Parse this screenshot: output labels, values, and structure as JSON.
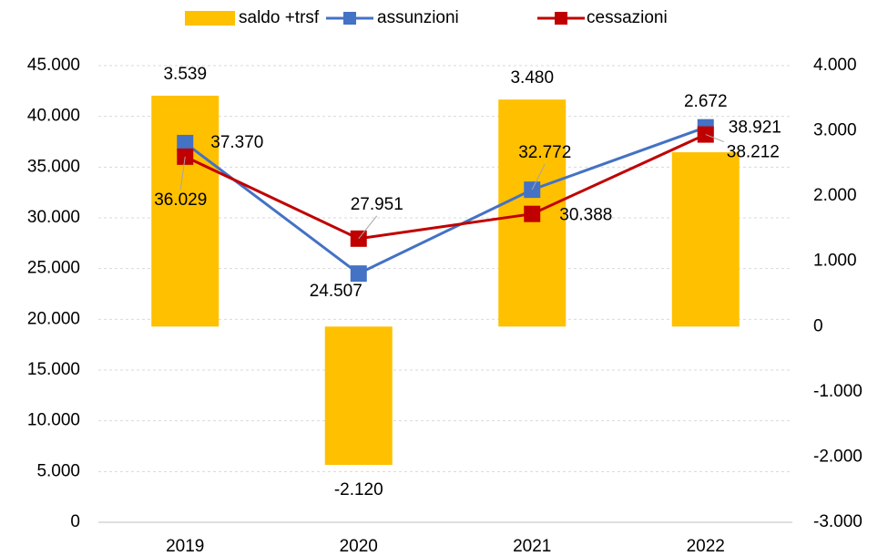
{
  "chart_data": {
    "type": "combo",
    "categories": [
      "2019",
      "2020",
      "2021",
      "2022"
    ],
    "series": [
      {
        "name": "saldo +trsf",
        "type": "bar",
        "axis": "y2",
        "color": "#ffc000",
        "values": [
          3539,
          -2120,
          3480,
          2672
        ],
        "value_labels": [
          "3.539",
          "-2.120",
          "3.480",
          "2.672"
        ]
      },
      {
        "name": "assunzioni",
        "type": "line",
        "color": "#4472c4",
        "values": [
          37370,
          24507,
          32772,
          38921
        ],
        "value_labels": [
          "37.370",
          "24.507",
          "32.772",
          "38.921"
        ]
      },
      {
        "name": "cessazioni",
        "type": "line",
        "color": "#c00000",
        "values": [
          36029,
          27951,
          30388,
          38212
        ],
        "value_labels": [
          "36.029",
          "27.951",
          "30.388",
          "38.212"
        ]
      }
    ],
    "ylim": [
      0,
      45000
    ],
    "yticks": [
      0,
      {
        "value": 5000,
        "label": "5.000"
      },
      {
        "value": 10000,
        "label": "10.000"
      },
      {
        "value": 15000,
        "label": "15.000"
      },
      {
        "value": 20000,
        "label": "20.000"
      },
      {
        "value": 25000,
        "label": "25.000"
      },
      {
        "value": 30000,
        "label": "30.000"
      },
      {
        "value": 35000,
        "label": "35.000"
      },
      {
        "value": 40000,
        "label": "40.000"
      },
      {
        "value": 45000,
        "label": "45.000"
      }
    ],
    "y2lim": [
      -3000,
      4000
    ],
    "y2ticks": [
      {
        "value": -3000,
        "label": "-3.000"
      },
      {
        "value": -2000,
        "label": "-2.000"
      },
      {
        "value": -1000,
        "label": "-1.000"
      },
      0,
      {
        "value": 1000,
        "label": "1.000"
      },
      {
        "value": 2000,
        "label": "2.000"
      },
      {
        "value": 3000,
        "label": "3.000"
      },
      {
        "value": 4000,
        "label": "4.000"
      }
    ],
    "grid": true,
    "legend": "top"
  }
}
